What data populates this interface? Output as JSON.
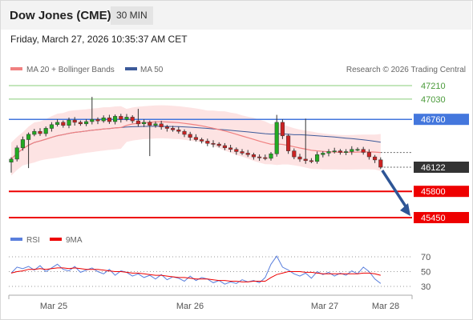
{
  "header": {
    "title": "Dow Jones (CME)",
    "timeframe": "30 MIN"
  },
  "datetime": "Friday, March 27, 2026 10:35:37 AM CET",
  "legend": {
    "ma20": "MA 20 + Bollinger Bands",
    "ma50": "MA 50",
    "credit": "Research © 2026 Trading Central"
  },
  "rsi_legend": {
    "rsi": "RSI",
    "ma9": "9MA"
  },
  "colors": {
    "ma20": "#f08080",
    "ma50": "#3c5a9a",
    "band": "#fde3e3",
    "up": "#22aa22",
    "down": "#cc2222",
    "resistance": "#4477dd",
    "support": "#ee0000",
    "target": "#88cc77",
    "arrow": "#2e5596",
    "price_box": "#333333"
  },
  "chart_data": [
    {
      "type": "candlestick",
      "x_labels": [
        "Mar 25",
        "Mar 26",
        "Mar 27",
        "Mar 28"
      ],
      "close": [
        46230,
        46380,
        46490,
        46560,
        46600,
        46570,
        46640,
        46690,
        46720,
        46680,
        46750,
        46720,
        46700,
        46730,
        46760,
        46740,
        46780,
        46730,
        46800,
        46760,
        46790,
        46740,
        46700,
        46720,
        46680,
        46700,
        46660,
        46640,
        46620,
        46600,
        46560,
        46520,
        46490,
        46470,
        46440,
        46430,
        46410,
        46380,
        46360,
        46330,
        46310,
        46290,
        46260,
        46250,
        46240,
        46300,
        46720,
        46540,
        46340,
        46260,
        46230,
        46210,
        46200,
        46290,
        46310,
        46330,
        46340,
        46320,
        46330,
        46360,
        46360,
        46320,
        46260,
        46220,
        46122
      ],
      "levels": [
        {
          "label": "47210",
          "value": 47210,
          "kind": "target"
        },
        {
          "label": "47030",
          "value": 47030,
          "kind": "target"
        },
        {
          "label": "46760",
          "value": 46760,
          "kind": "resistance"
        },
        {
          "label": "46122",
          "value": 46122,
          "kind": "last"
        },
        {
          "label": "45800",
          "value": 45800,
          "kind": "support"
        },
        {
          "label": "45450",
          "value": 45450,
          "kind": "support"
        }
      ],
      "projection_target": 45450
    },
    {
      "type": "line",
      "name": "RSI",
      "y_ticks": [
        70,
        50,
        30
      ],
      "series": [
        {
          "name": "RSI",
          "values": [
            48,
            56,
            54,
            57,
            52,
            58,
            50,
            55,
            60,
            53,
            51,
            57,
            49,
            52,
            55,
            50,
            47,
            53,
            45,
            51,
            49,
            44,
            47,
            42,
            45,
            40,
            46,
            39,
            43,
            41,
            37,
            44,
            38,
            42,
            40,
            35,
            38,
            33,
            36,
            34,
            39,
            36,
            38,
            35,
            42,
            60,
            71,
            56,
            52,
            47,
            44,
            48,
            41,
            50,
            46,
            49,
            44,
            48,
            45,
            51,
            47,
            56,
            50,
            40,
            34
          ]
        },
        {
          "name": "9MA",
          "values": [
            48,
            50,
            51,
            53,
            53,
            54,
            53,
            54,
            55,
            55,
            54,
            55,
            54,
            53,
            53,
            53,
            52,
            51,
            50,
            50,
            49,
            48,
            48,
            47,
            46,
            45,
            45,
            44,
            43,
            42,
            42,
            41,
            40,
            40,
            40,
            39,
            38,
            38,
            37,
            37,
            36,
            36,
            37,
            37,
            37,
            42,
            46,
            48,
            50,
            50,
            50,
            49,
            49,
            48,
            47,
            47,
            47,
            47,
            47,
            47,
            47,
            48,
            48,
            47,
            45
          ]
        }
      ]
    }
  ]
}
